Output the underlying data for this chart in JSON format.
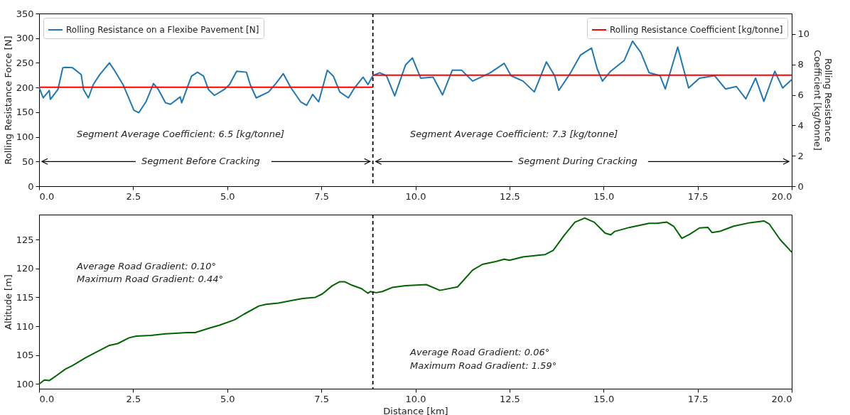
{
  "chart_data": [
    {
      "type": "line",
      "ylabel": "Rolling Resistance Force [N]",
      "y2label": "Rolling Resistance\nCoefficient [kg/tonne]",
      "legend": "top",
      "xlim": [
        0,
        20
      ],
      "xticks": [
        {
          "value": 0,
          "label": "0.0"
        },
        {
          "value": 2.5,
          "label": "2.5"
        },
        {
          "value": 5,
          "label": "5.0"
        },
        {
          "value": 7.5,
          "label": "7.5"
        },
        {
          "value": 10,
          "label": "10.0"
        },
        {
          "value": 12.5,
          "label": "12.5"
        },
        {
          "value": 15,
          "label": "15.0"
        },
        {
          "value": 17.5,
          "label": "17.5"
        },
        {
          "value": 20,
          "label": "20.0"
        }
      ],
      "ylim": [
        0,
        350
      ],
      "yticks": [
        0,
        50,
        100,
        150,
        200,
        250,
        300,
        350
      ],
      "y2lim": [
        0,
        11.35
      ],
      "y2ticks": [
        0,
        2,
        4,
        6,
        8,
        10
      ],
      "series": [
        {
          "name": "Rolling Resistance on a Flexibe Pavement [N]",
          "color": "#1f77b4",
          "x": [
            0,
            0.11,
            0.27,
            0.3,
            0.5,
            0.63,
            0.69,
            0.89,
            1.12,
            1.18,
            1.31,
            1.44,
            1.61,
            1.87,
            2.0,
            2.23,
            2.52,
            2.65,
            2.84,
            3.04,
            3.17,
            3.36,
            3.49,
            3.75,
            3.79,
            4.05,
            4.21,
            4.37,
            4.5,
            4.66,
            4.92,
            5.06,
            5.25,
            5.51,
            5.61,
            5.77,
            6.1,
            6.29,
            6.49,
            6.68,
            6.95,
            7.11,
            7.27,
            7.43,
            7.66,
            7.82,
            7.99,
            8.22,
            8.38,
            8.61,
            8.74,
            8.87,
            9.05,
            9.23,
            9.45,
            9.74,
            9.92,
            10.14,
            10.47,
            10.72,
            10.98,
            11.23,
            11.52,
            11.99,
            12.36,
            12.54,
            12.86,
            13.16,
            13.48,
            13.7,
            13.81,
            14.1,
            14.39,
            14.68,
            14.83,
            14.97,
            15.19,
            15.55,
            15.77,
            15.99,
            16.21,
            16.5,
            16.64,
            16.97,
            17.26,
            17.55,
            17.95,
            18.24,
            18.53,
            18.78,
            19.04,
            19.26,
            19.55,
            19.76,
            20
          ],
          "values": [
            200,
            179,
            194,
            176,
            196,
            240,
            241,
            240,
            226,
            196,
            179,
            206,
            226,
            250,
            235,
            206,
            154,
            149,
            171,
            208,
            196,
            169,
            166,
            181,
            169,
            223,
            231,
            223,
            196,
            184,
            196,
            206,
            233,
            231,
            206,
            179,
            191,
            208,
            228,
            201,
            171,
            164,
            186,
            171,
            235,
            223,
            191,
            179,
            199,
            221,
            206,
            224,
            230,
            224,
            183,
            246,
            260,
            219,
            221,
            185,
            235,
            235,
            213,
            230,
            249,
            224,
            213,
            191,
            252,
            224,
            194,
            227,
            266,
            280,
            238,
            213,
            233,
            255,
            294,
            271,
            230,
            224,
            197,
            282,
            199,
            219,
            224,
            197,
            202,
            177,
            219,
            172,
            233,
            199,
            216
          ]
        },
        {
          "name": "Rolling Resistance Coefficient [kg/tonne]",
          "color": "#ff0000",
          "axis": "y2",
          "x": [
            0,
            8.87
          ],
          "values": [
            6.5,
            6.5
          ]
        },
        {
          "color": "#ff0000",
          "axis": "y2",
          "x": [
            8.87,
            20
          ],
          "values": [
            7.3,
            7.3
          ]
        }
      ],
      "ref_lines": [
        {
          "axis": "x",
          "value": 8.87,
          "color": "#000000",
          "line_style": "dashed"
        }
      ],
      "annotations": [
        "Segment Average Coefficient: 6.5 [kg/tonne]",
        "Segment Average Coefficient: 7.3 [kg/tonne]",
        {
          "text": "Segment Before Cracking",
          "x": 8.87,
          "y": 50
        },
        {
          "text": "Segment During Cracking",
          "x": 8.87,
          "y": 50
        }
      ]
    },
    {
      "type": "line",
      "xlabel": "Distance [km]",
      "ylabel": "Altitude [m]",
      "xlim": [
        0,
        20
      ],
      "xticks": [
        {
          "value": 0,
          "label": "0.0"
        },
        {
          "value": 2.5,
          "label": "2.5"
        },
        {
          "value": 5,
          "label": "5.0"
        },
        {
          "value": 7.5,
          "label": "7.5"
        },
        {
          "value": 10,
          "label": "10.0"
        },
        {
          "value": 12.5,
          "label": "12.5"
        },
        {
          "value": 15,
          "label": "15.0"
        },
        {
          "value": 17.5,
          "label": "17.5"
        },
        {
          "value": 20,
          "label": "20.0"
        }
      ],
      "ylim": [
        99.2,
        129.3
      ],
      "yticks": [
        100,
        105,
        110,
        115,
        120,
        125
      ],
      "series": [
        {
          "color": "#006400",
          "x": [
            0,
            0.14,
            0.27,
            0.47,
            0.7,
            0.89,
            1.22,
            1.48,
            1.87,
            2.09,
            2.39,
            2.58,
            2.97,
            3.36,
            3.95,
            4.15,
            4.54,
            4.8,
            5.19,
            5.45,
            5.84,
            6.03,
            6.36,
            6.75,
            7.01,
            7.34,
            7.53,
            7.79,
            7.99,
            8.12,
            8.31,
            8.57,
            8.74,
            8.8,
            8.96,
            9.12,
            9.38,
            9.74,
            10.29,
            10.65,
            11.12,
            11.52,
            11.78,
            12.14,
            12.36,
            12.5,
            12.86,
            13.45,
            13.66,
            13.95,
            14.24,
            14.5,
            14.75,
            15.04,
            15.19,
            15.3,
            15.7,
            16.21,
            16.42,
            16.68,
            16.86,
            17.08,
            17.29,
            17.55,
            17.77,
            17.88,
            18.09,
            18.46,
            18.89,
            19.26,
            19.4,
            19.69,
            20
          ],
          "values": [
            100.0,
            100.7,
            100.6,
            101.5,
            102.6,
            103.2,
            104.5,
            105.4,
            106.7,
            107.0,
            108.0,
            108.3,
            108.4,
            108.7,
            108.9,
            108.9,
            109.7,
            110.2,
            111.1,
            112.1,
            113.5,
            113.8,
            114.0,
            114.5,
            114.8,
            115.0,
            115.6,
            117.0,
            117.7,
            117.7,
            117.1,
            116.5,
            115.7,
            116.0,
            115.8,
            116.0,
            116.7,
            117.0,
            117.2,
            116.2,
            116.8,
            119.7,
            120.7,
            121.2,
            121.6,
            121.4,
            122.0,
            122.4,
            123.1,
            125.7,
            128.0,
            128.7,
            128.0,
            126.1,
            125.8,
            126.4,
            127.1,
            127.8,
            127.8,
            128.0,
            127.3,
            125.2,
            125.9,
            127.0,
            127.1,
            126.2,
            126.4,
            127.3,
            127.9,
            128.2,
            127.7,
            125.0,
            122.8
          ]
        }
      ],
      "ref_lines": [
        {
          "axis": "x",
          "value": 8.87,
          "color": "#000000",
          "line_style": "dashed"
        }
      ],
      "annotations": [
        "Average Road Gradient: 0.10°",
        "Maximum Road Gradient: 0.44°",
        "Average Road Gradient: 0.06°",
        "Maximum Road Gradient: 1.59°"
      ]
    }
  ]
}
